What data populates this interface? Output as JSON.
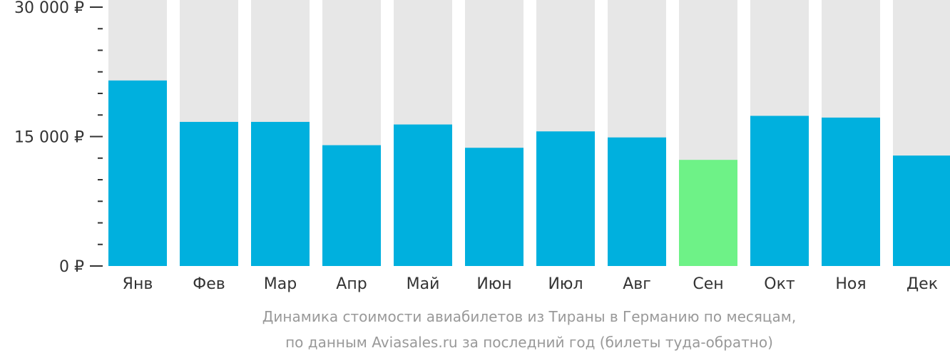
{
  "chart_data": {
    "type": "bar",
    "categories": [
      "Янв",
      "Фев",
      "Мар",
      "Апр",
      "Май",
      "Июн",
      "Июл",
      "Авг",
      "Сен",
      "Окт",
      "Ноя",
      "Дек"
    ],
    "values": [
      21500,
      16700,
      16700,
      14000,
      16400,
      13700,
      15600,
      14900,
      12300,
      17400,
      17200,
      12800
    ],
    "ylim": [
      0,
      30000
    ],
    "y_ticks": [
      {
        "value": 0,
        "label": "0 ₽"
      },
      {
        "value": 15000,
        "label": "15 000 ₽"
      },
      {
        "value": 30000,
        "label": "30 000 ₽"
      }
    ],
    "highlight_index": 8,
    "grid": false,
    "legend": "none"
  },
  "colors": {
    "bar": "#00b0de",
    "bar_highlight": "#6ef287",
    "bar_background": "#e7e7e7",
    "axis_text": "#333333",
    "caption_text": "#999999"
  },
  "caption": {
    "line1": "Динамика стоимости авиабилетов из Тираны в Германию по месяцам,",
    "line2": "по данным Aviasales.ru за последний год (билеты туда-обратно)"
  }
}
